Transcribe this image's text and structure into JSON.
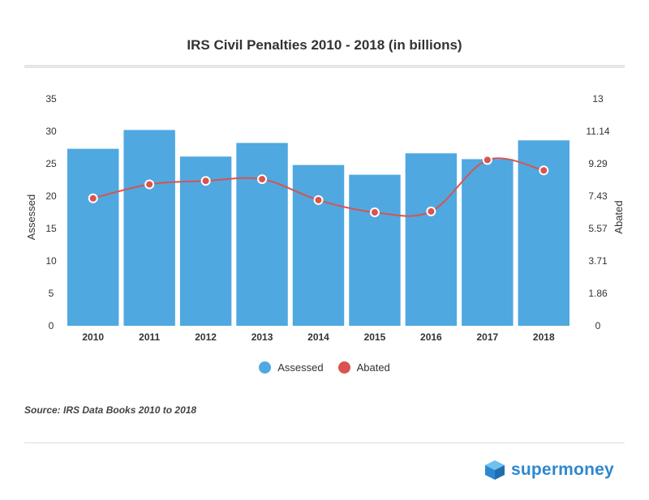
{
  "title": "IRS Civil Penalties 2010 - 2018 (in billions)",
  "source": "Source: IRS Data Books 2010 to 2018",
  "brand": "supermoney",
  "colors": {
    "assessed": "#4fa8e0",
    "abated": "#d9534f",
    "brand": "#2e88cf",
    "grid": "#e6e6e6"
  },
  "chart_data": {
    "type": "bar",
    "categories": [
      "2010",
      "2011",
      "2012",
      "2013",
      "2014",
      "2015",
      "2016",
      "2017",
      "2018"
    ],
    "series": [
      {
        "name": "Assessed",
        "type": "bar",
        "axis": "left",
        "values": [
          27.3,
          30.2,
          26.1,
          28.2,
          24.8,
          23.3,
          26.6,
          25.7,
          28.6
        ]
      },
      {
        "name": "Abated",
        "type": "line",
        "axis": "right",
        "values": [
          7.3,
          8.1,
          8.3,
          8.4,
          7.2,
          6.5,
          6.55,
          9.5,
          8.9
        ]
      }
    ],
    "left_axis": {
      "label": "Assessed",
      "ticks": [
        "0",
        "5",
        "10",
        "15",
        "20",
        "25",
        "30",
        "35"
      ],
      "range": [
        0,
        35
      ]
    },
    "right_axis": {
      "label": "Abated",
      "ticks": [
        "0",
        "1.86",
        "3.71",
        "5.57",
        "7.43",
        "9.29",
        "11.14",
        "13"
      ],
      "range": [
        0,
        13
      ]
    },
    "legend": [
      "Assessed",
      "Abated"
    ],
    "legend_position": "bottom",
    "grid": false
  }
}
